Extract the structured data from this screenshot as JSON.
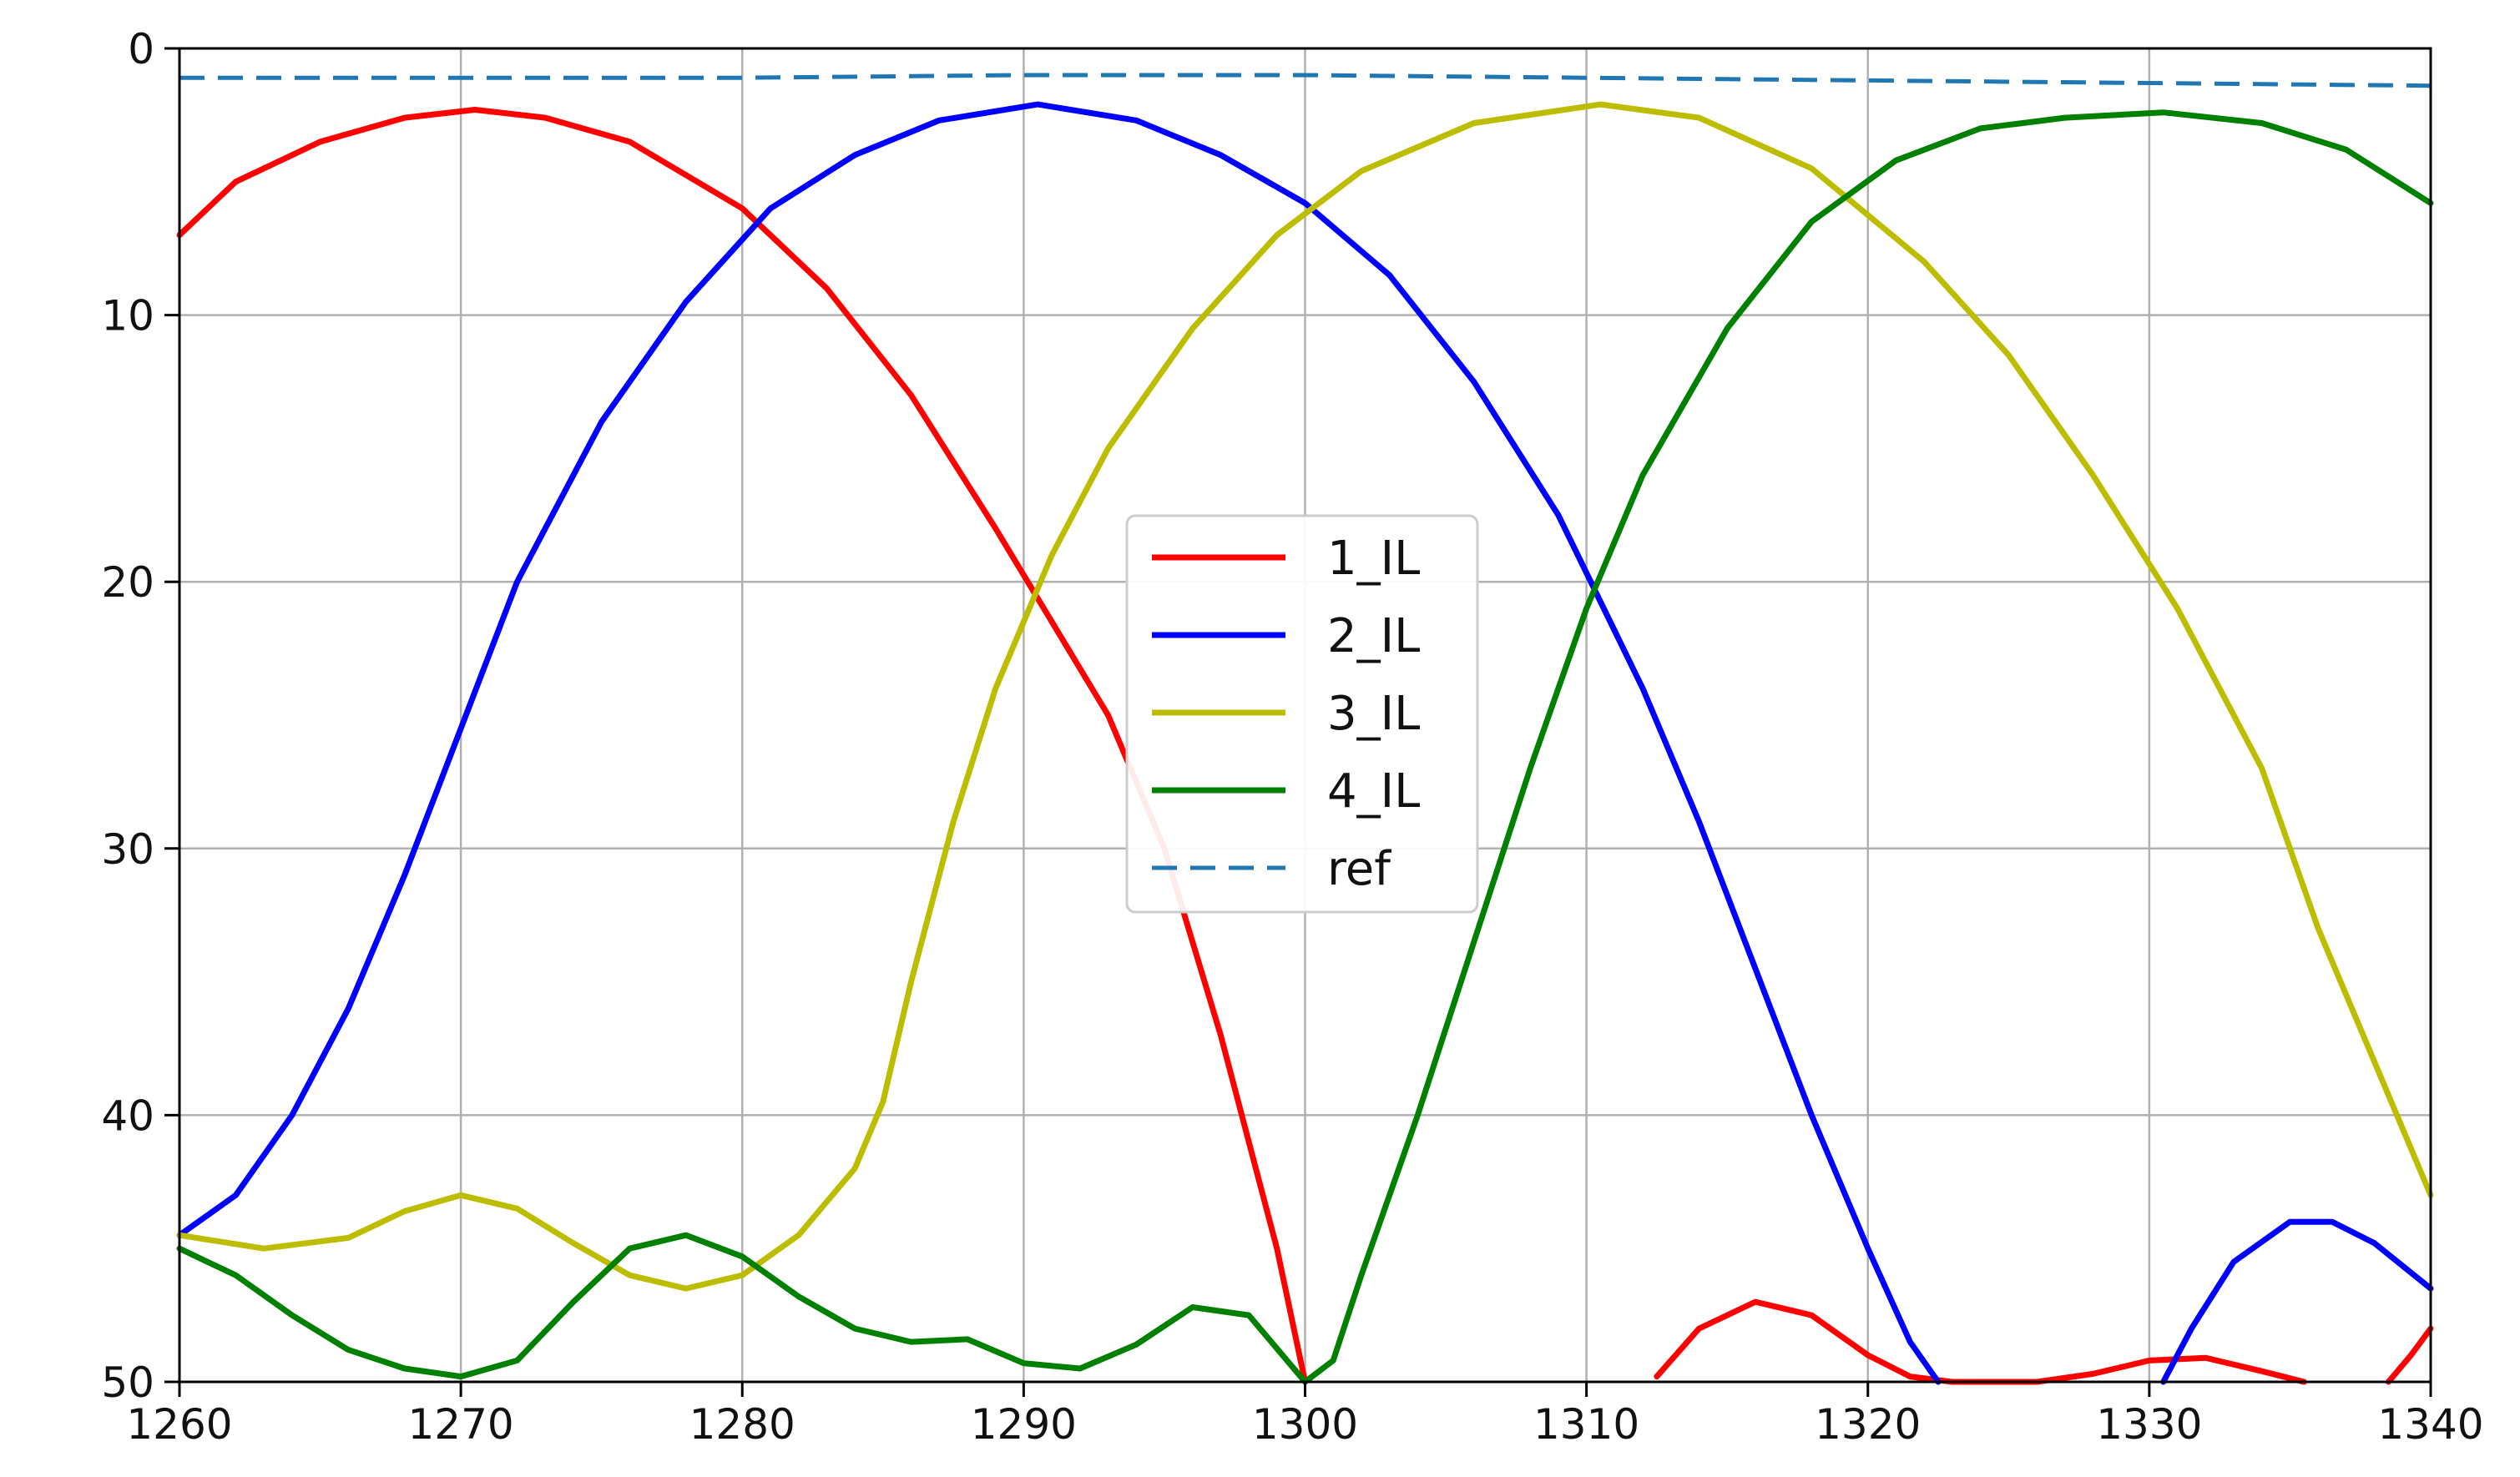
{
  "chart_data": {
    "type": "line",
    "title": "",
    "xlabel": "",
    "ylabel": "",
    "xlim": [
      1260,
      1340
    ],
    "ylim": [
      0,
      50
    ],
    "y_inverted": true,
    "grid": true,
    "legend_position": "center",
    "x_ticks": [
      "1260",
      "1270",
      "1280",
      "1290",
      "1300",
      "1310",
      "1320",
      "1330",
      "1340"
    ],
    "y_ticks": [
      "0",
      "10",
      "20",
      "30",
      "40",
      "50"
    ],
    "series": [
      {
        "name": "1_IL",
        "color": "#ff0000",
        "style": "solid",
        "x": [
          1260,
          1262,
          1265,
          1268,
          1270.5,
          1273,
          1276,
          1280,
          1283,
          1286,
          1289,
          1291,
          1293,
          1294,
          1295,
          1297,
          1299,
          1300
        ],
        "y": [
          7,
          5,
          3.5,
          2.6,
          2.3,
          2.6,
          3.5,
          6,
          9,
          13,
          18,
          21.5,
          25,
          27.5,
          30,
          37,
          45,
          50
        ]
      },
      {
        "name": "1_IL",
        "x": [
          1312.5,
          1314,
          1316,
          1318,
          1320,
          1321.5,
          1323
        ],
        "y": [
          49.8,
          48,
          47,
          47.5,
          49,
          49.8,
          50
        ]
      },
      {
        "name": "1_IL",
        "x": [
          1323,
          1326,
          1328,
          1330,
          1332,
          1334,
          1335.5
        ],
        "y": [
          50,
          50,
          49.7,
          49.2,
          49.1,
          49.6,
          50
        ]
      },
      {
        "name": "1_IL",
        "x": [
          1338.5,
          1339.3,
          1340
        ],
        "y": [
          50,
          49,
          48
        ]
      },
      {
        "name": "2_IL",
        "color": "#0000ff",
        "style": "solid",
        "x": [
          1260,
          1262,
          1264,
          1266,
          1268,
          1270,
          1272,
          1275,
          1278,
          1281,
          1284,
          1287,
          1290.5,
          1294,
          1297,
          1300,
          1303,
          1306,
          1309,
          1312,
          1314,
          1316,
          1318,
          1320,
          1321.5,
          1322.5
        ],
        "y": [
          44.5,
          43,
          40,
          36,
          31,
          25.5,
          20,
          14,
          9.5,
          6,
          4,
          2.7,
          2.1,
          2.7,
          4,
          5.8,
          8.5,
          12.5,
          17.5,
          24,
          29,
          34.5,
          40,
          45,
          48.5,
          50
        ]
      },
      {
        "name": "2_IL",
        "x": [
          1330.5,
          1331.5,
          1333,
          1335,
          1336.5,
          1338,
          1340
        ],
        "y": [
          50,
          48,
          45.5,
          44,
          44,
          44.8,
          46.5
        ]
      },
      {
        "name": "3_IL",
        "color": "#bdbd00",
        "style": "solid",
        "x": [
          1260,
          1263,
          1266,
          1268,
          1270,
          1272,
          1274,
          1276,
          1278,
          1280,
          1282,
          1284,
          1285,
          1286,
          1287.5,
          1289,
          1291,
          1293,
          1296,
          1299,
          1302,
          1306,
          1310.5,
          1314,
          1318,
          1322,
          1325,
          1328,
          1331,
          1334,
          1336,
          1338,
          1340
        ],
        "y": [
          44.5,
          45,
          44.6,
          43.6,
          43,
          43.5,
          44.8,
          46,
          46.5,
          46,
          44.5,
          42,
          39.5,
          35,
          29,
          24,
          19,
          15,
          10.5,
          7,
          4.6,
          2.8,
          2.1,
          2.6,
          4.5,
          8,
          11.5,
          16,
          21,
          27,
          33,
          38,
          43
        ]
      },
      {
        "name": "4_IL",
        "color": "#008000",
        "style": "solid",
        "x": [
          1260,
          1262,
          1264,
          1266,
          1268,
          1270,
          1272,
          1274,
          1276,
          1278,
          1280,
          1282,
          1284,
          1286,
          1288,
          1290,
          1292,
          1294,
          1296,
          1298,
          1300,
          1301,
          1302,
          1304,
          1306,
          1308,
          1310,
          1312,
          1315,
          1318,
          1321,
          1324,
          1327,
          1330.5,
          1334,
          1337,
          1340
        ],
        "y": [
          45,
          46,
          47.5,
          48.8,
          49.5,
          49.8,
          49.2,
          47,
          45,
          44.5,
          45.3,
          46.8,
          48,
          48.5,
          48.4,
          49.3,
          49.5,
          48.6,
          47.2,
          47.5,
          50,
          49.2,
          46,
          40,
          33.5,
          27,
          21,
          16,
          10.5,
          6.5,
          4.2,
          3,
          2.6,
          2.4,
          2.8,
          3.8,
          5.8
        ]
      },
      {
        "name": "ref",
        "color": "#1f77b4",
        "style": "dashed",
        "x": [
          1260,
          1270,
          1280,
          1290,
          1300,
          1310,
          1320,
          1330,
          1340
        ],
        "y": [
          1.1,
          1.1,
          1.1,
          1.0,
          1.0,
          1.1,
          1.2,
          1.3,
          1.4
        ]
      }
    ],
    "legend": [
      {
        "label": "1_IL",
        "color": "#ff0000",
        "style": "solid"
      },
      {
        "label": "2_IL",
        "color": "#0000ff",
        "style": "solid"
      },
      {
        "label": "3_IL",
        "color": "#bdbd00",
        "style": "solid"
      },
      {
        "label": "4_IL",
        "color": "#008000",
        "style": "solid"
      },
      {
        "label": "ref",
        "color": "#1f77b4",
        "style": "dashed"
      }
    ]
  }
}
